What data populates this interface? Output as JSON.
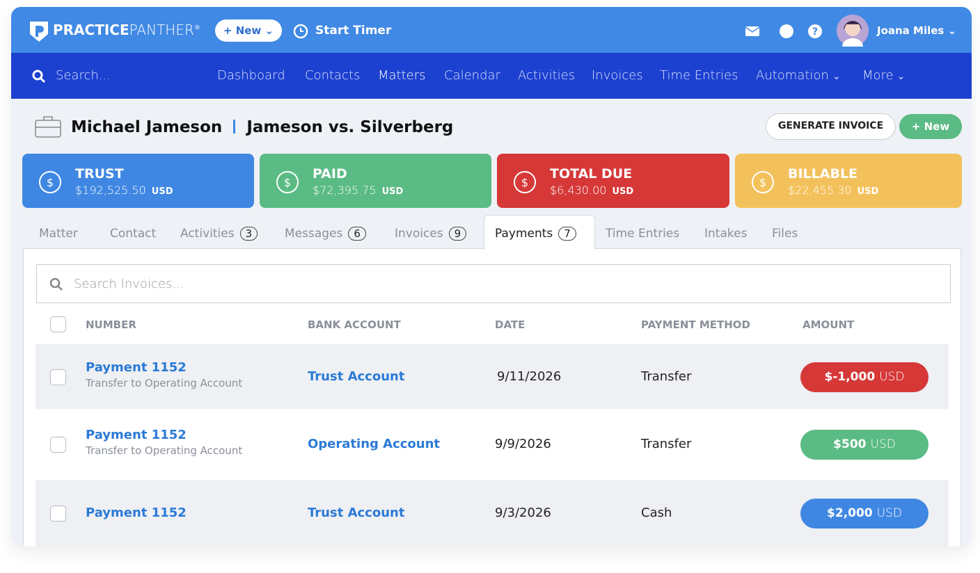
{
  "header": {
    "brand_bold": "PRACTICE",
    "brand_light": "PANTHER",
    "brand_mark": "®",
    "new_button": "+ New",
    "timer": "Start Timer",
    "user": "Joana Miles"
  },
  "nav": {
    "search": "Search...",
    "active_index": 2,
    "items": [
      {
        "label": "Dashboard"
      },
      {
        "label": "Contacts"
      },
      {
        "label": "Matters"
      },
      {
        "label": "Calendar"
      },
      {
        "label": "Activities"
      },
      {
        "label": "Invoices"
      },
      {
        "label": "Time Entries"
      },
      {
        "label": "Automation",
        "dropdown": true
      },
      {
        "label": "More",
        "dropdown": true
      }
    ]
  },
  "title": {
    "client": "Michael Jameson",
    "matter": "Jameson vs. Silverberg",
    "actions": [
      "GENERATE INVOICE",
      "+ New"
    ]
  },
  "summary": [
    {
      "label": "TRUST",
      "amount": "$192,525.50",
      "currency": "USD",
      "color": "#3f87e2"
    },
    {
      "label": "PAID",
      "amount": "$72,395.75",
      "currency": "USD",
      "color": "#5bbb84"
    },
    {
      "label": "TOTAL DUE",
      "amount": "$6,430.00",
      "currency": "USD",
      "color": "#d63838"
    },
    {
      "label": "BILLABLE",
      "amount": "$22,455.30",
      "currency": "USD",
      "color": "#f3c15b"
    }
  ],
  "tabs": {
    "active_index": 5,
    "items": [
      {
        "label": "Matter"
      },
      {
        "label": "Contact"
      },
      {
        "label": "Activities",
        "count": "3"
      },
      {
        "label": "Messages",
        "count": "6"
      },
      {
        "label": "Invoices",
        "count": "9"
      },
      {
        "label": "Payments",
        "count": "7"
      },
      {
        "label": "Time Entries"
      },
      {
        "label": "Intakes"
      },
      {
        "label": "Files"
      }
    ]
  },
  "table": {
    "search": "Search Invoices...",
    "columns": [
      "NUMBER",
      "BANK ACCOUNT",
      "DATE",
      "PAYMENT METHOD",
      "AMOUNT"
    ],
    "rows": [
      {
        "number": "Payment 1152",
        "note": "Transfer to Operating Account",
        "bank": "Trust Account",
        "date": "9/11/2026",
        "method": "Transfer",
        "amount": "$-1,000",
        "currency": "USD",
        "color": "#d63838"
      },
      {
        "number": "Payment 1152",
        "note": "Transfer to Operating Account",
        "bank": "Operating Account",
        "date": "9/9/2026",
        "method": "Transfer",
        "amount": "$500",
        "currency": "USD",
        "color": "#5bbb84"
      },
      {
        "number": "Payment 1152",
        "bank": "Trust Account",
        "date": "9/3/2026",
        "method": "Cash",
        "amount": "$2,000",
        "currency": "USD",
        "color": "#3f87e2"
      }
    ]
  }
}
